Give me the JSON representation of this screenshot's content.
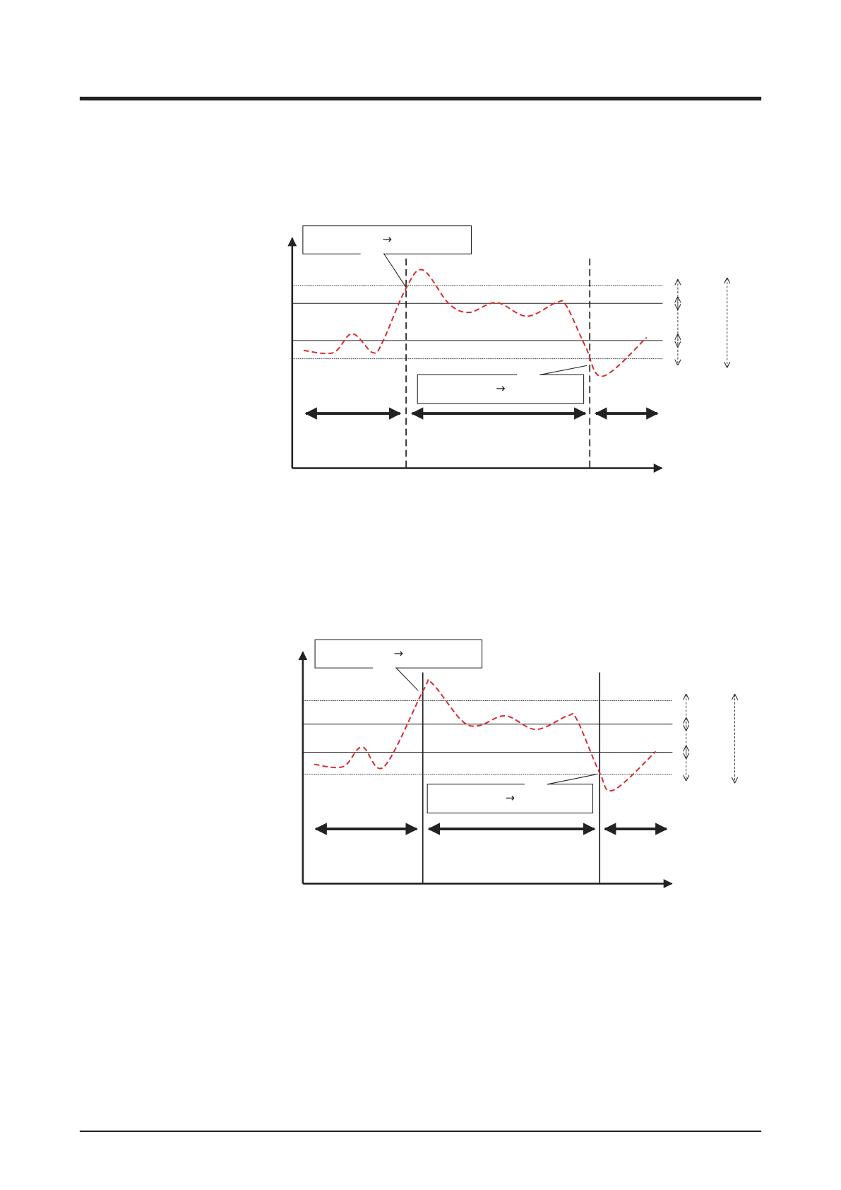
{
  "colors": {
    "curve": "#d9262c",
    "ink": "#222222"
  },
  "diagrams": [
    {
      "top_callout": "→",
      "bottom_callout": "→",
      "boundary_style": "dashed"
    },
    {
      "top_callout": "→",
      "bottom_callout": "→",
      "boundary_style": "solid"
    }
  ]
}
